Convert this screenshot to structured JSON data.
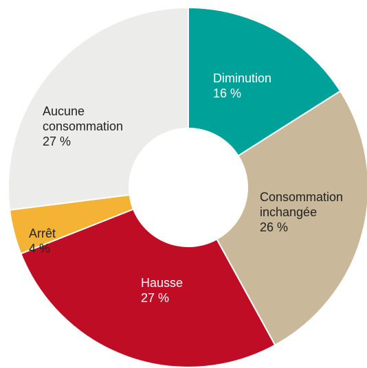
{
  "chart_data": {
    "type": "pie",
    "categories": [
      "Diminution",
      "Consommation inchangée",
      "Hausse",
      "Arrêt",
      "Aucune consommation"
    ],
    "values": [
      16,
      26,
      27,
      4,
      27
    ],
    "value_labels": [
      "16 %",
      "26 %",
      "27 %",
      "4 %",
      "27 %"
    ],
    "colors": [
      "#00a199",
      "#c9b99a",
      "#c00d26",
      "#f5b335",
      "#ececea"
    ],
    "label_colors": [
      "#ffffff",
      "#222222",
      "#ffffff",
      "#222222",
      "#222222"
    ]
  }
}
